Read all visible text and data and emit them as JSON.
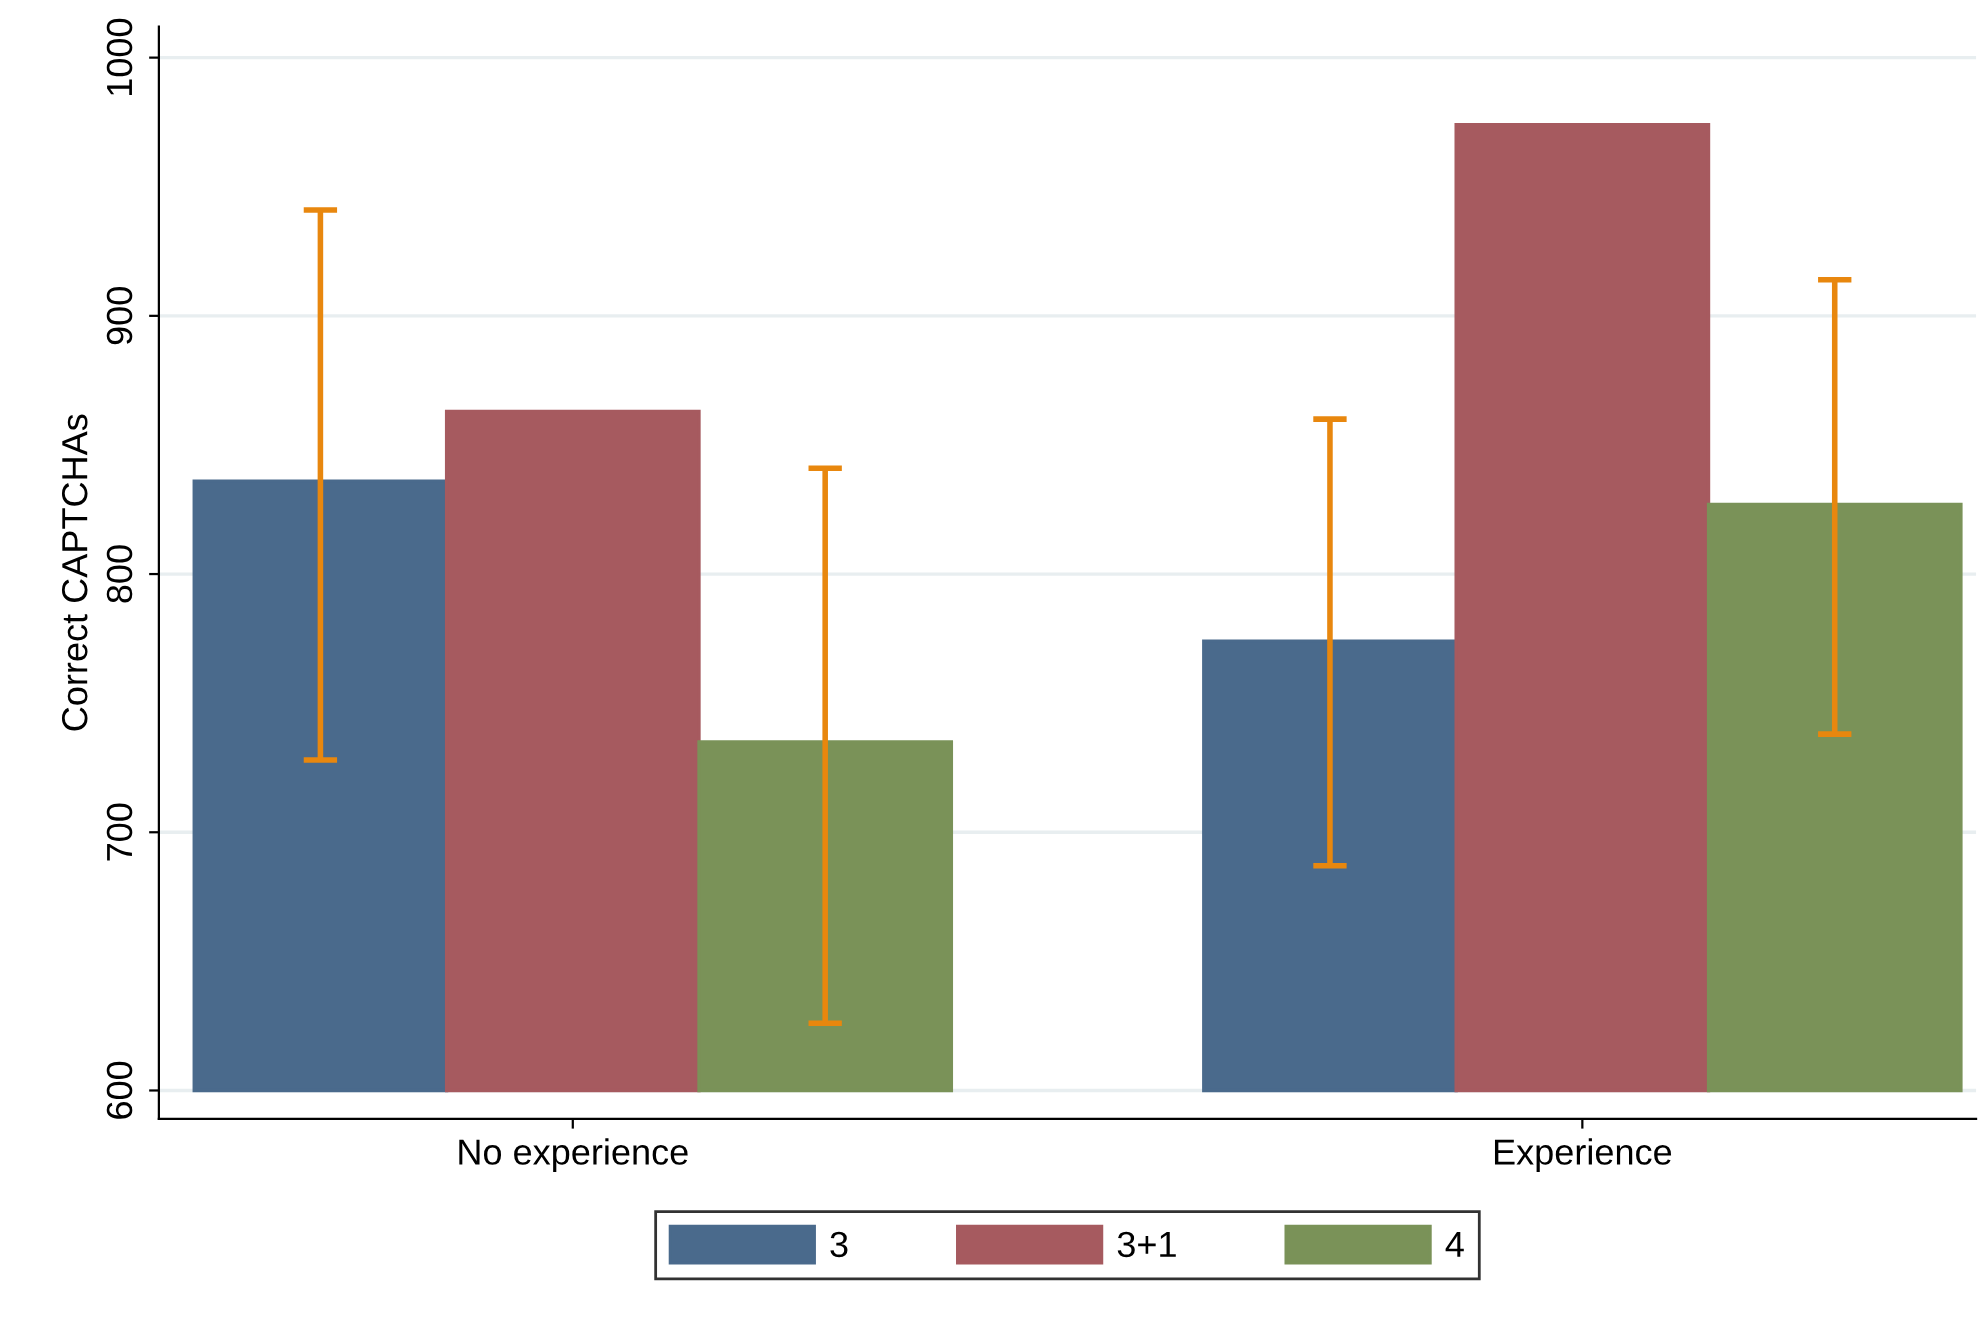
{
  "chart_data": {
    "type": "bar",
    "ylabel": "Correct CAPTCHAs",
    "categories": [
      "No experience",
      "Experience"
    ],
    "series": [
      {
        "name": "3",
        "color": "#4a6a8c",
        "base": [
          600,
          600
        ],
        "values": [
          236,
          174
        ],
        "errors": [
          [
            728,
            941
          ],
          [
            687,
            860
          ]
        ]
      },
      {
        "name": "3+1",
        "color": "#a65a5f",
        "base": [
          600,
          600
        ],
        "values": [
          263,
          374
        ],
        "errors": [
          null,
          null
        ]
      },
      {
        "name": "4",
        "color": "#7a9258",
        "base": [
          600,
          600
        ],
        "values": [
          135,
          227
        ],
        "errors": [
          [
            626,
            841
          ],
          [
            738,
            914
          ]
        ]
      }
    ],
    "ylim": [
      589,
      1012
    ],
    "yticks": [
      600,
      700,
      800,
      900,
      1000
    ],
    "grid": "y",
    "legend": "bottom"
  }
}
